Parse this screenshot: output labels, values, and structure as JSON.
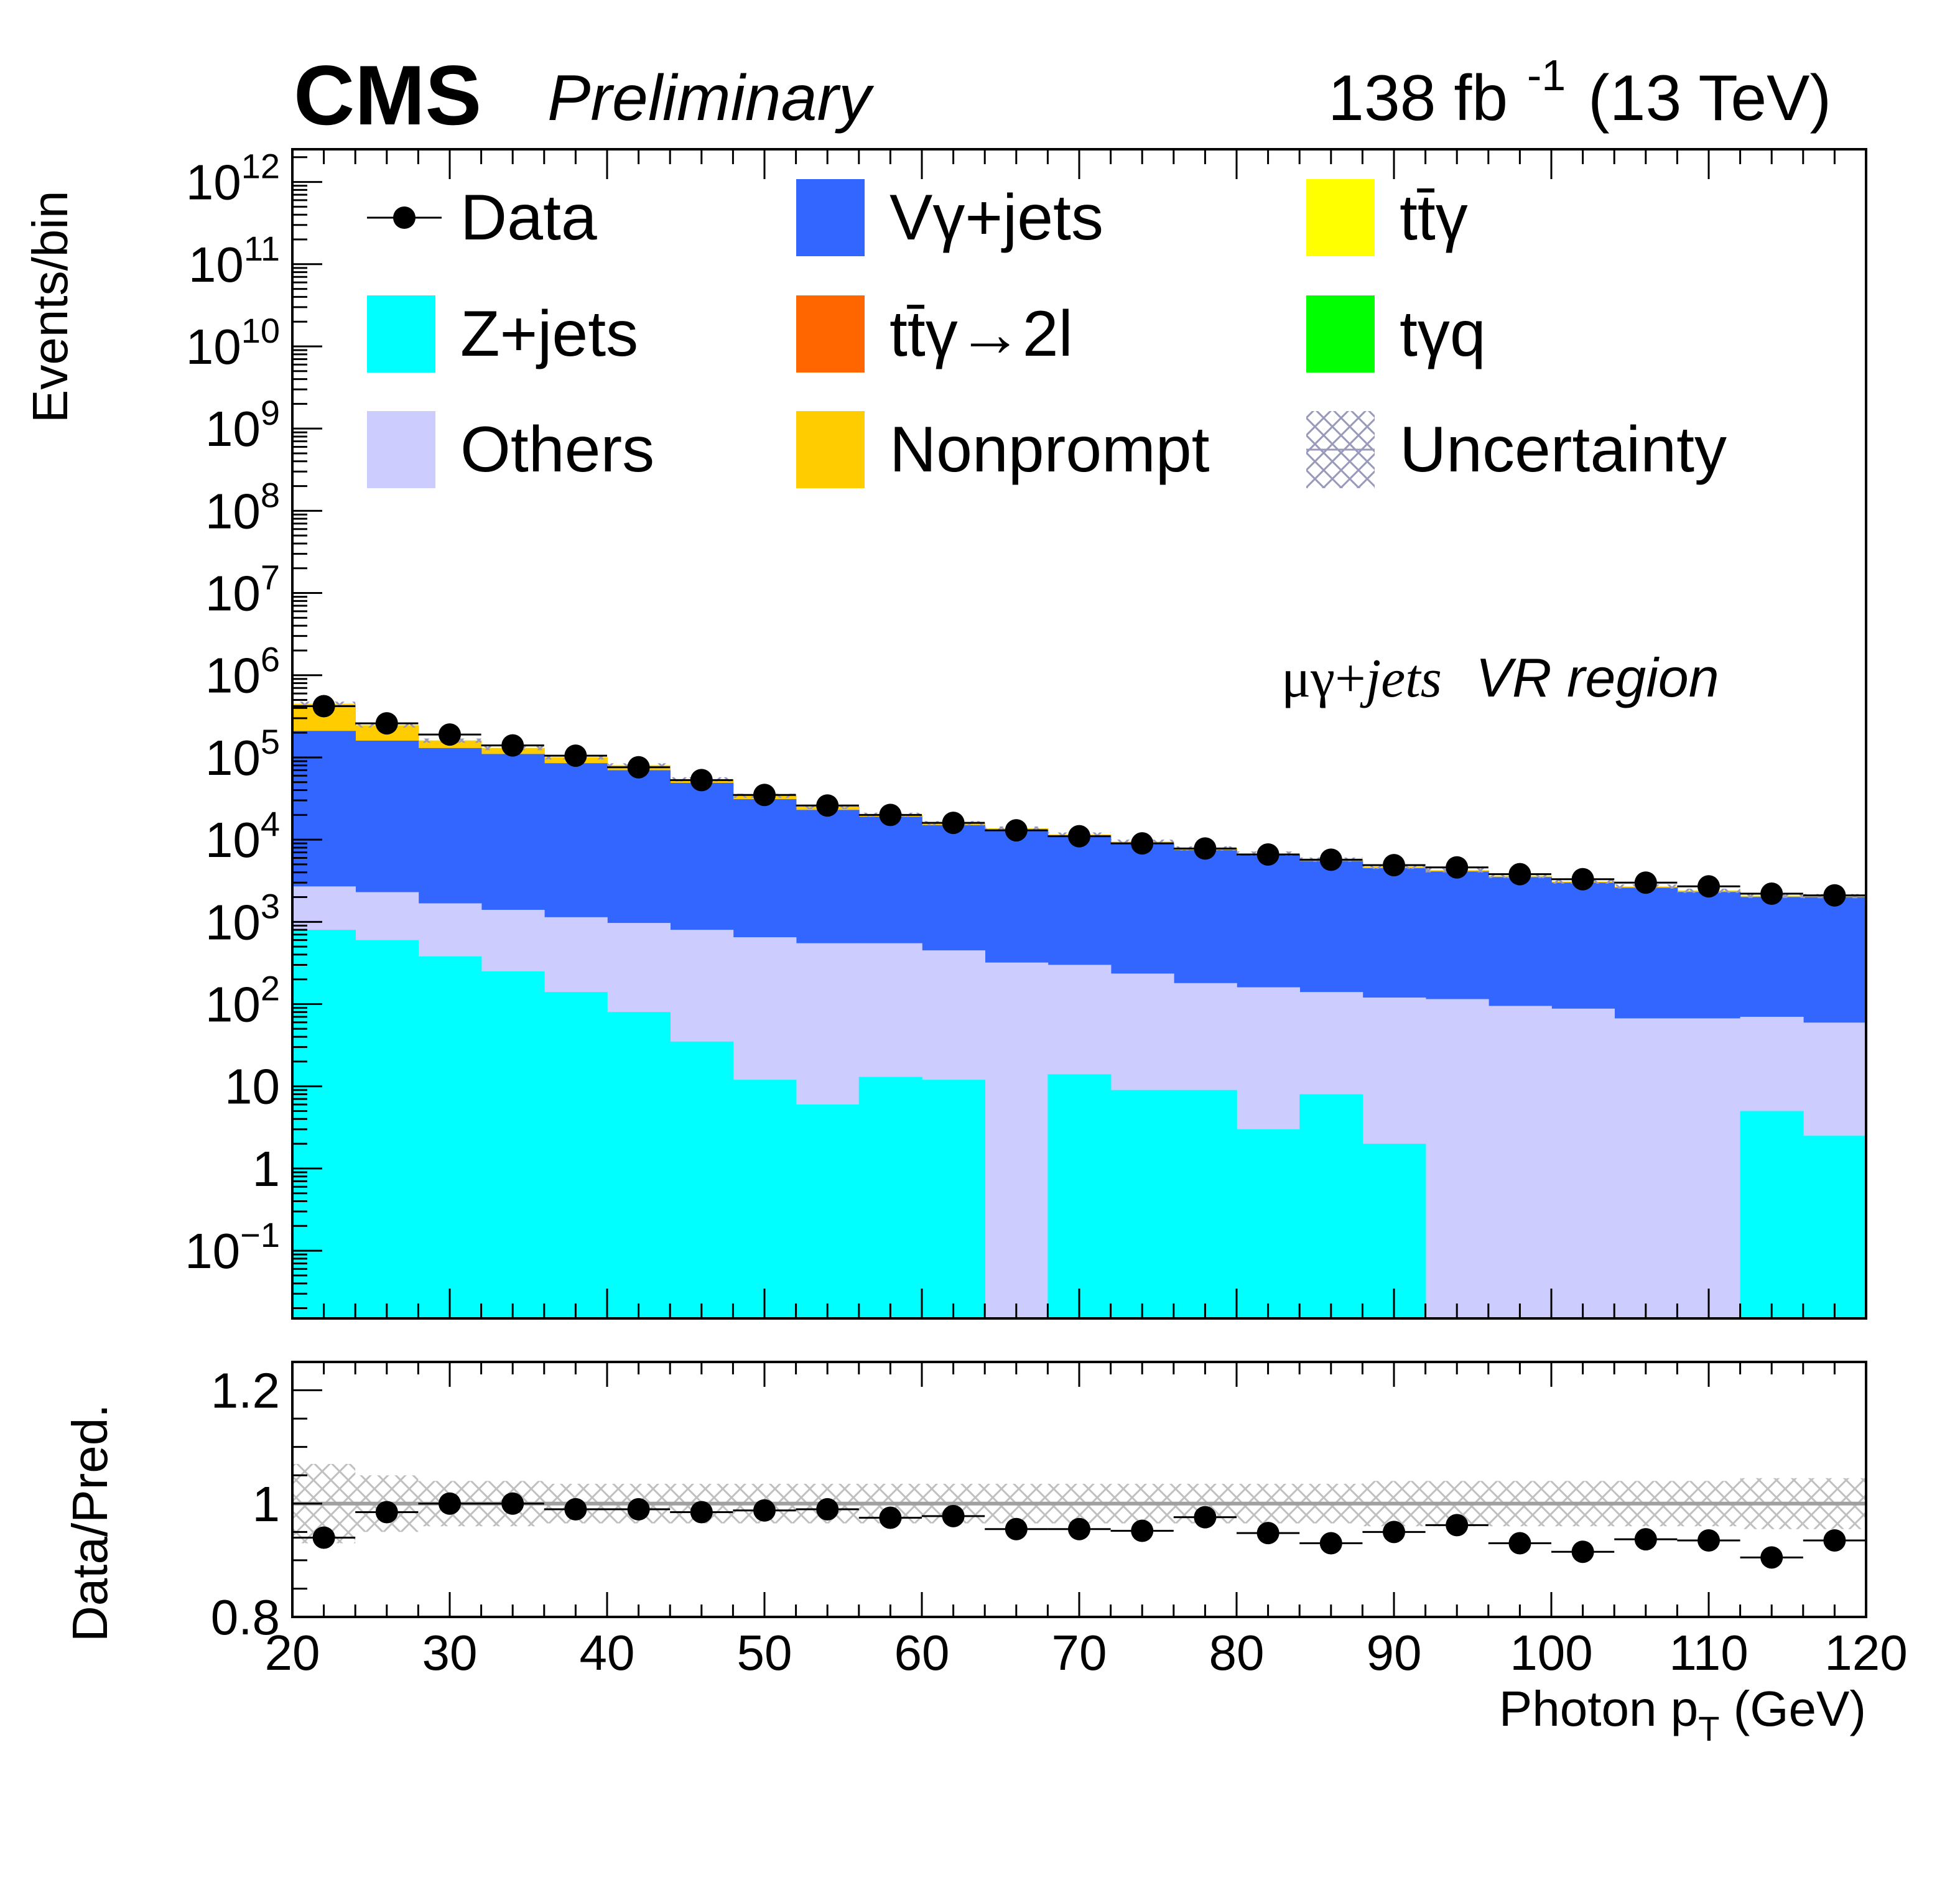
{
  "header": {
    "experiment": "CMS",
    "status": "Preliminary",
    "lumi_value": "138 fb",
    "lumi_exponent": "-1",
    "energy": "(13 TeV)"
  },
  "annotation": {
    "channel": "μγ+",
    "channel_italic": "jets",
    "region": "VR region"
  },
  "legend": [
    {
      "key": "data",
      "label": "Data",
      "style": "marker",
      "color": "#000000"
    },
    {
      "key": "vgamma",
      "label": "Vγ+jets",
      "style": "fill",
      "color": "#3366ff"
    },
    {
      "key": "ttgamma",
      "label": "tt̄γ",
      "style": "fill",
      "color": "#ffff00"
    },
    {
      "key": "zjets",
      "label": "Z+jets",
      "style": "fill",
      "color": "#00ffff"
    },
    {
      "key": "ttgamma2l",
      "label": "tt̄γ→2l",
      "style": "fill",
      "color": "#ff6600"
    },
    {
      "key": "tgq",
      "label": "tγq",
      "style": "fill",
      "color": "#00ff00"
    },
    {
      "key": "others",
      "label": "Others",
      "style": "fill",
      "color": "#ccccff"
    },
    {
      "key": "nonprompt",
      "label": "Nonprompt",
      "style": "fill",
      "color": "#ffcc00"
    },
    {
      "key": "unc",
      "label": "Uncertainty",
      "style": "hatch",
      "color": "#9999bb"
    }
  ],
  "chart_data": [
    {
      "type": "bar",
      "stacked": true,
      "log_y": true,
      "title": "",
      "ylabel": "Events/bin",
      "xlabel": "",
      "xlim": [
        20,
        120
      ],
      "ylim": [
        0.015,
        2500000000000.0
      ],
      "y_tick_labels": [
        {
          "value": 0.1,
          "base": "10",
          "exp": "−1"
        },
        {
          "value": 1,
          "base": "1",
          "exp": ""
        },
        {
          "value": 10,
          "base": "10",
          "exp": ""
        },
        {
          "value": 100,
          "base": "10",
          "exp": "2"
        },
        {
          "value": 1000,
          "base": "10",
          "exp": "3"
        },
        {
          "value": 10000,
          "base": "10",
          "exp": "4"
        },
        {
          "value": 100000,
          "base": "10",
          "exp": "5"
        },
        {
          "value": 1000000,
          "base": "10",
          "exp": "6"
        },
        {
          "value": 10000000,
          "base": "10",
          "exp": "7"
        },
        {
          "value": 100000000,
          "base": "10",
          "exp": "8"
        },
        {
          "value": 1000000000,
          "base": "10",
          "exp": "9"
        },
        {
          "value": 10000000000,
          "base": "10",
          "exp": "10"
        },
        {
          "value": 100000000000,
          "base": "10",
          "exp": "11"
        },
        {
          "value": 1000000000000,
          "base": "10",
          "exp": "12"
        }
      ],
      "bin_edges": [
        20,
        24,
        28,
        32,
        36,
        40,
        44,
        48,
        52,
        56,
        60,
        64,
        68,
        72,
        76,
        80,
        84,
        88,
        92,
        96,
        100,
        104,
        108,
        112,
        116,
        120
      ],
      "series": [
        {
          "name": "Z+jets",
          "key": "zjets",
          "values": [
            800,
            600,
            380,
            250,
            140,
            80,
            35,
            12,
            6,
            13,
            12,
            0,
            14,
            9,
            9,
            3,
            8,
            2,
            0,
            0,
            0,
            0,
            0,
            5,
            2.5
          ]
        },
        {
          "name": "Others",
          "key": "others",
          "values": [
            1900,
            1700,
            1300,
            1150,
            1000,
            890,
            765,
            638,
            544,
            537,
            438,
            320,
            286,
            226,
            171,
            157,
            132,
            118,
            115,
            95,
            88,
            67,
            67,
            65,
            57
          ]
        },
        {
          "name": "Vγ+jets",
          "key": "vgamma",
          "values": [
            207300,
            157700,
            128300,
            108600,
            83900,
            69000,
            48200,
            30400,
            22450,
            18450,
            14550,
            12680,
            10700,
            8765,
            7320,
            6340,
            5360,
            4380,
            3985,
            3405,
            2912,
            2533,
            2243,
            1935,
            1941
          ]
        },
        {
          "name": "Nonprompt",
          "key": "nonprompt",
          "values": [
            240000,
            85000,
            30000,
            20000,
            15000,
            10000,
            5000,
            3000,
            2000,
            1000,
            800,
            600,
            500,
            400,
            300,
            250,
            200,
            150,
            120,
            100,
            80,
            80,
            70,
            60,
            50
          ]
        },
        {
          "name": "tt̄γ",
          "key": "ttgamma",
          "values": [
            500,
            400,
            300,
            250,
            200,
            150,
            120,
            100,
            80,
            70,
            60,
            50,
            40,
            35,
            30,
            25,
            22,
            20,
            18,
            15,
            12,
            10,
            9,
            8,
            7
          ]
        },
        {
          "name": "tt̄γ→2l",
          "key": "ttgamma2l",
          "values": [
            20,
            18,
            15,
            12,
            10,
            9,
            8,
            7,
            6,
            5,
            4,
            4,
            3,
            3,
            3,
            2,
            2,
            2,
            2,
            1,
            1,
            1,
            1,
            1,
            1
          ]
        },
        {
          "name": "tγq",
          "key": "tgq",
          "values": [
            10,
            9,
            8,
            7,
            6,
            5,
            4,
            4,
            3,
            3,
            2,
            2,
            2,
            2,
            1,
            1,
            1,
            1,
            1,
            1,
            1,
            1,
            1,
            1,
            1
          ]
        }
      ],
      "data": {
        "name": "Data",
        "x": [
          22,
          26,
          30,
          34,
          38,
          42,
          46,
          50,
          54,
          58,
          62,
          66,
          70,
          74,
          78,
          82,
          86,
          90,
          94,
          98,
          102,
          106,
          110,
          114,
          118
        ],
        "values": [
          420000,
          260000,
          190000,
          140000,
          105000,
          76000,
          53000,
          35000,
          26000,
          20000,
          16000,
          13000,
          11000,
          9000,
          7800,
          6600,
          5700,
          4900,
          4600,
          3800,
          3300,
          3000,
          2700,
          2200,
          2100
        ]
      }
    },
    {
      "type": "scatter",
      "title": "",
      "ylabel": "Data/Pred.",
      "xlabel": "Photon p",
      "xlabel_sub": "T",
      "xlabel_unit": " (GeV)",
      "xlim": [
        20,
        120
      ],
      "ylim": [
        0.8,
        1.25
      ],
      "x_ticks": [
        20,
        30,
        40,
        50,
        60,
        70,
        80,
        90,
        100,
        110,
        120
      ],
      "x_tick_labels": [
        "20",
        "30",
        "40",
        "50",
        "60",
        "70",
        "80",
        "90",
        "100",
        "110",
        "120"
      ],
      "y_ticks": [
        0.8,
        1.0,
        1.2
      ],
      "y_tick_labels": [
        "0.8",
        "1",
        "1.2"
      ],
      "reference_line": 1.0,
      "x": [
        22,
        26,
        30,
        34,
        38,
        42,
        46,
        50,
        54,
        58,
        62,
        66,
        70,
        74,
        78,
        82,
        86,
        90,
        94,
        98,
        102,
        106,
        110,
        114,
        118
      ],
      "values": [
        0.94,
        0.985,
        1.0,
        1.0,
        0.99,
        0.99,
        0.985,
        0.988,
        0.99,
        0.975,
        0.978,
        0.955,
        0.955,
        0.952,
        0.976,
        0.948,
        0.93,
        0.95,
        0.962,
        0.93,
        0.915,
        0.937,
        0.935,
        0.905,
        0.935
      ],
      "uncertainty": [
        0.07,
        0.05,
        0.04,
        0.04,
        0.035,
        0.035,
        0.035,
        0.035,
        0.035,
        0.035,
        0.035,
        0.035,
        0.035,
        0.035,
        0.035,
        0.035,
        0.035,
        0.04,
        0.04,
        0.04,
        0.04,
        0.04,
        0.04,
        0.045,
        0.045
      ]
    }
  ]
}
